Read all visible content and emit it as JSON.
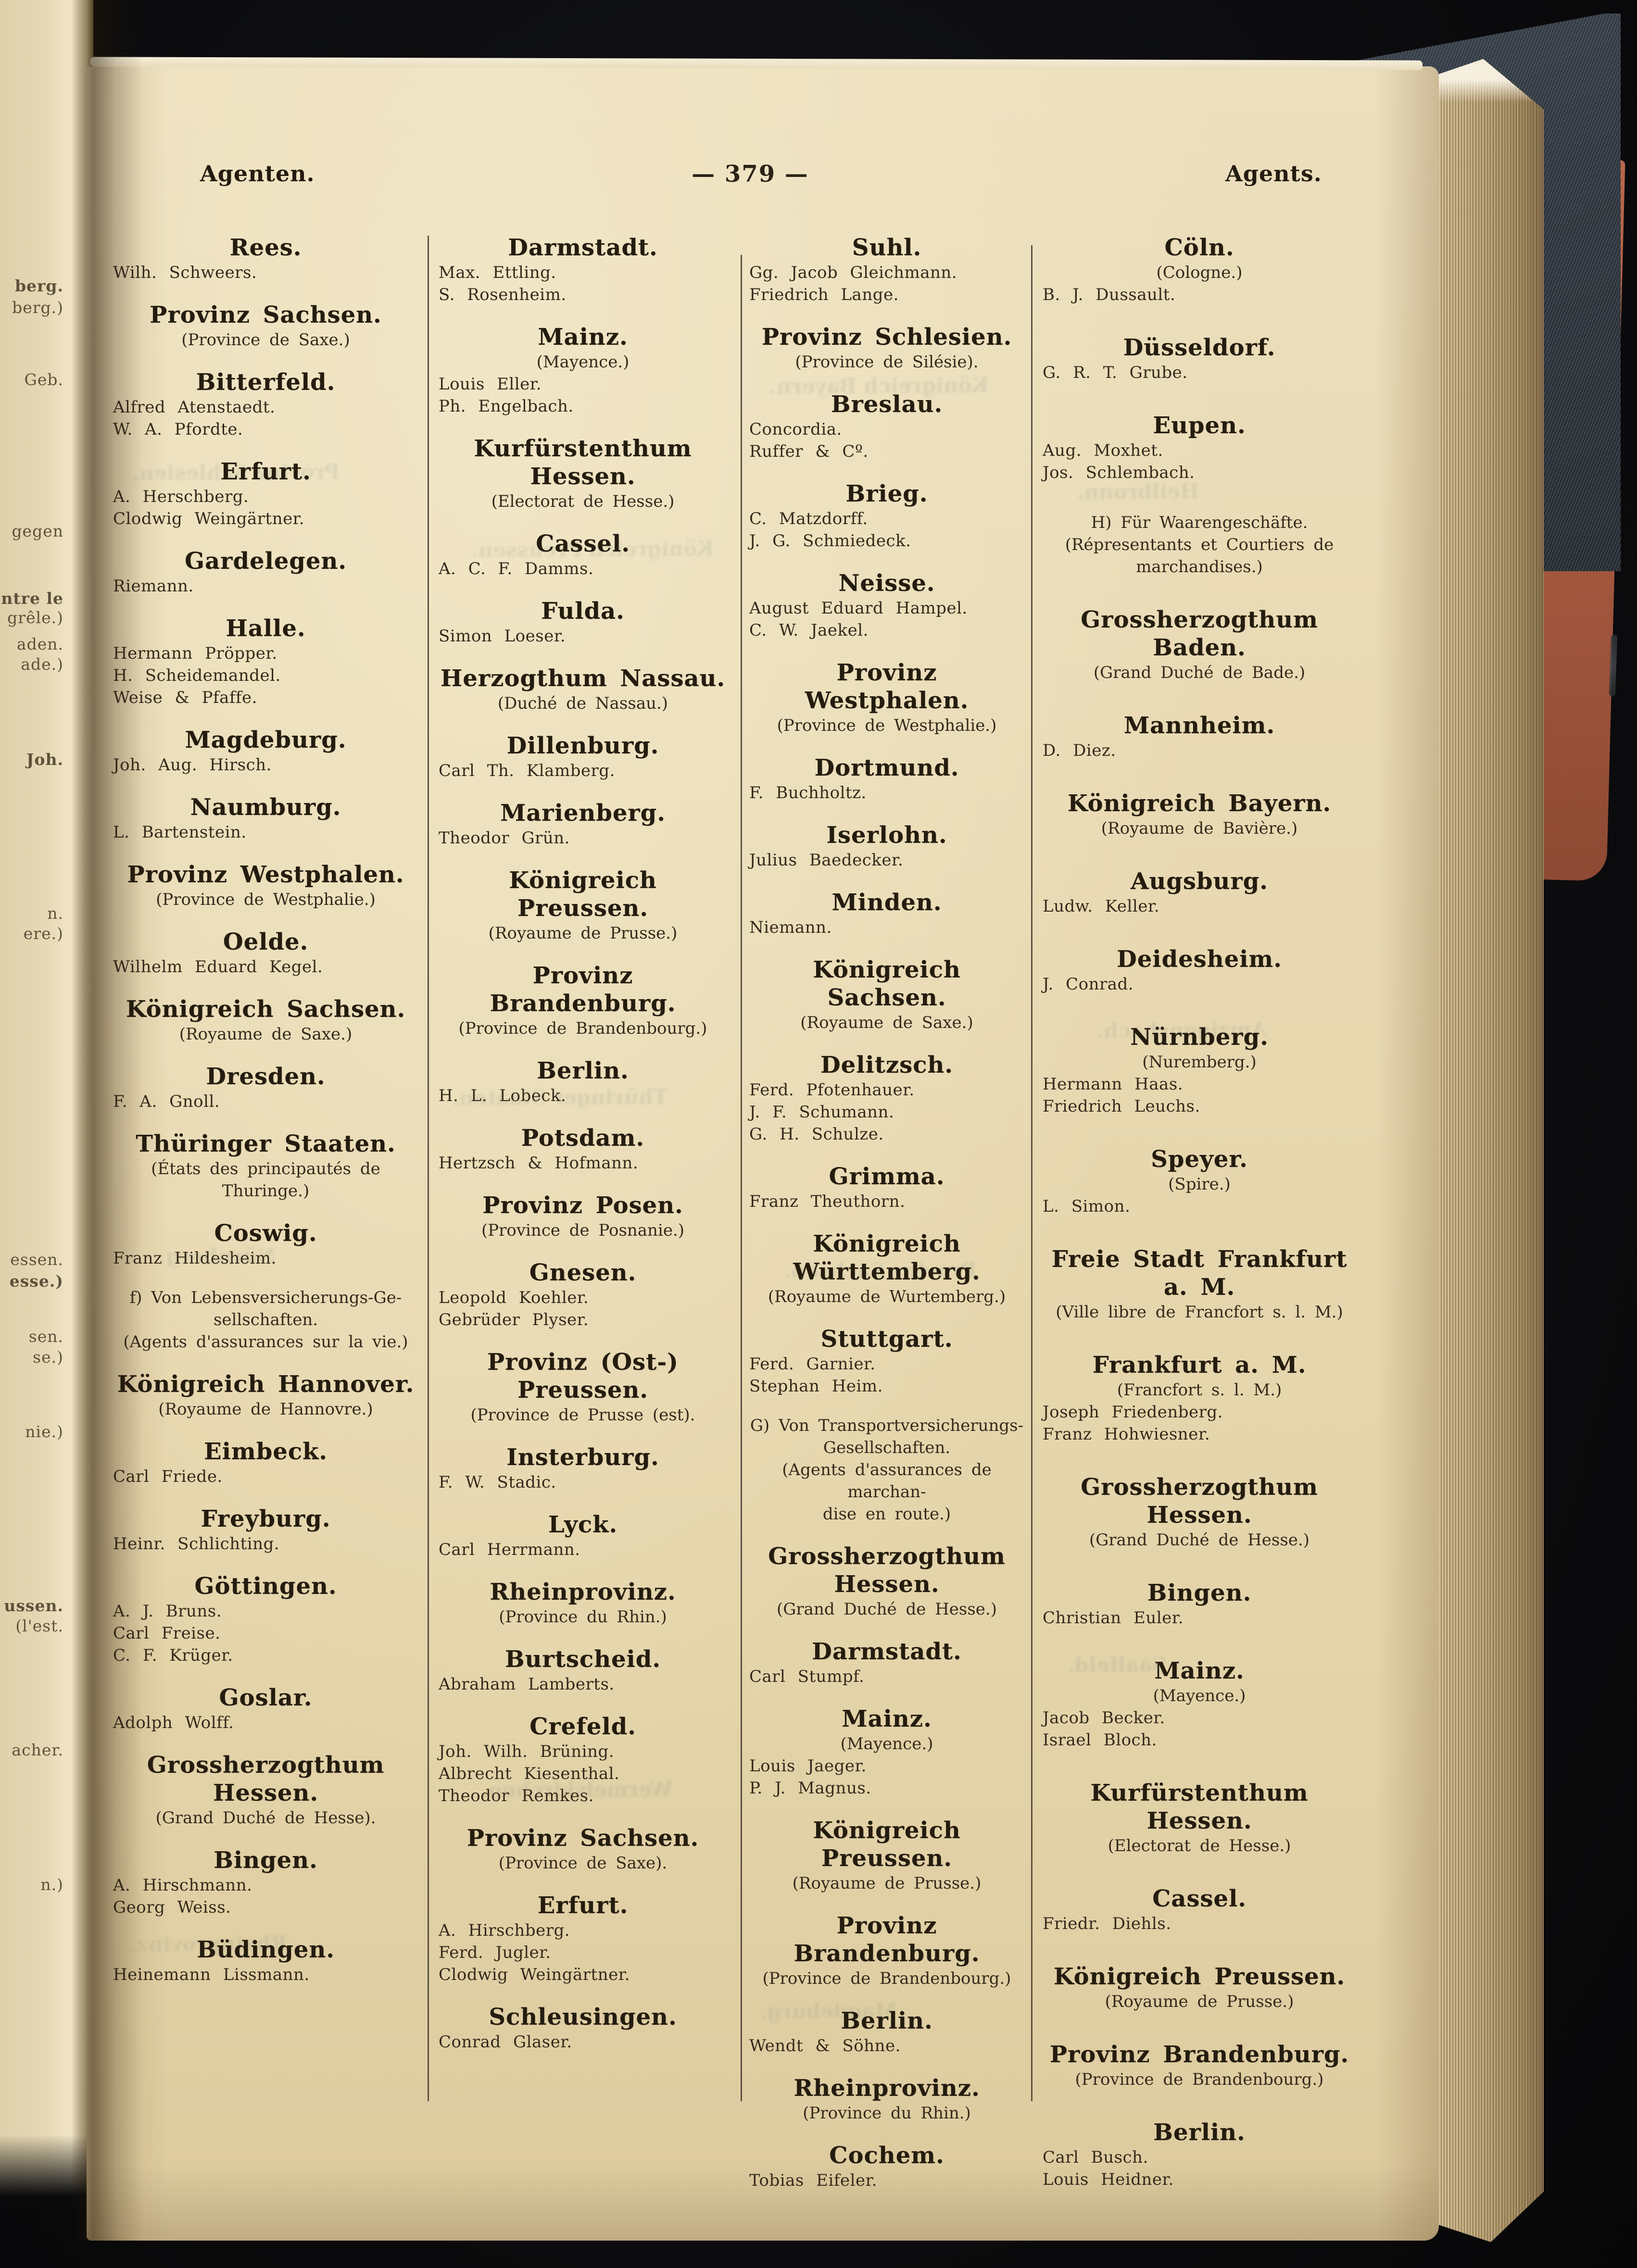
{
  "header": {
    "left": "Agenten.",
    "center": "— 379 —",
    "right": "Agents."
  },
  "columns": [
    {
      "entries": [
        {
          "title": "Rees.",
          "names": [
            "Wilh. Schweers."
          ]
        },
        {
          "title": "Provinz Sachsen.",
          "subtitle": [
            "(Province de Saxe.)"
          ]
        },
        {
          "title": "Bitterfeld.",
          "names": [
            "Alfred Atenstaedt.",
            "W. A. Pfordte."
          ]
        },
        {
          "title": "Erfurt.",
          "names": [
            "A. Herschberg.",
            "Clodwig Weingärtner."
          ]
        },
        {
          "title": "Gardelegen.",
          "names": [
            "Riemann."
          ]
        },
        {
          "title": "Halle.",
          "names": [
            "Hermann Pröpper.",
            "H. Scheidemandel.",
            "Weise & Pfaffe."
          ]
        },
        {
          "title": "Magdeburg.",
          "names": [
            "Joh. Aug. Hirsch."
          ]
        },
        {
          "title": "Naumburg.",
          "names": [
            "L. Bartenstein."
          ]
        },
        {
          "title": "Provinz Westphalen.",
          "subtitle": [
            "(Province de Westphalie.)"
          ]
        },
        {
          "title": "Oelde.",
          "names": [
            "Wilhelm Eduard Kegel."
          ]
        },
        {
          "title": "Königreich Sachsen.",
          "subtitle": [
            "(Royaume de Saxe.)"
          ]
        },
        {
          "title": "Dresden.",
          "names": [
            "F. A. Gnoll."
          ]
        },
        {
          "title": "Thüringer Staaten.",
          "subtitle": [
            "(États des principautés de Thuringe.)"
          ]
        },
        {
          "title": "Coswig.",
          "names": [
            "Franz Hildesheim."
          ]
        },
        {
          "note": [
            "f) Von Lebensversicherungs-Ge-",
            "sellschaften."
          ],
          "subtitle": [
            "(Agents d'assurances sur la vie.)"
          ]
        },
        {
          "title": "Königreich Hannover.",
          "subtitle": [
            "(Royaume de Hannovre.)"
          ]
        },
        {
          "title": "Eimbeck.",
          "names": [
            "Carl Friede."
          ]
        },
        {
          "title": "Freyburg.",
          "names": [
            "Heinr. Schlichting."
          ]
        },
        {
          "title": "Göttingen.",
          "names": [
            "A. J. Bruns.",
            "Carl Freise.",
            "C. F. Krüger."
          ]
        },
        {
          "title": "Goslar.",
          "names": [
            "Adolph Wolff."
          ]
        },
        {
          "title": "Grossherzogthum Hessen.",
          "subtitle": [
            "(Grand Duché de Hesse)."
          ]
        },
        {
          "title": "Bingen.",
          "names": [
            "A. Hirschmann.",
            "Georg Weiss."
          ]
        },
        {
          "title": "Büdingen.",
          "names": [
            "Heinemann Lissmann."
          ]
        }
      ]
    },
    {
      "entries": [
        {
          "title": "Darmstadt.",
          "names": [
            "Max. Ettling.",
            "S. Rosenheim."
          ]
        },
        {
          "title": "Mainz.",
          "subtitle": [
            "(Mayence.)"
          ],
          "names": [
            "Louis Eller.",
            "Ph. Engelbach."
          ]
        },
        {
          "title": "Kurfürstenthum Hessen.",
          "subtitle": [
            "(Electorat de Hesse.)"
          ]
        },
        {
          "title": "Cassel.",
          "names": [
            "A. C. F. Damms."
          ]
        },
        {
          "title": "Fulda.",
          "names": [
            "Simon Loeser."
          ]
        },
        {
          "title": "Herzogthum Nassau.",
          "subtitle": [
            "(Duché de Nassau.)"
          ]
        },
        {
          "title": "Dillenburg.",
          "names": [
            "Carl Th. Klamberg."
          ]
        },
        {
          "title": "Marienberg.",
          "names": [
            "Theodor Grün."
          ]
        },
        {
          "title": "Königreich Preussen.",
          "subtitle": [
            "(Royaume de Prusse.)"
          ]
        },
        {
          "title": "Provinz Brandenburg.",
          "subtitle": [
            "(Province de Brandenbourg.)"
          ]
        },
        {
          "title": "Berlin.",
          "names": [
            "H. L. Lobeck."
          ]
        },
        {
          "title": "Potsdam.",
          "names": [
            "Hertzsch & Hofmann."
          ]
        },
        {
          "title": "Provinz Posen.",
          "subtitle": [
            "(Province de Posnanie.)"
          ]
        },
        {
          "title": "Gnesen.",
          "names": [
            "Leopold Koehler.",
            "Gebrüder Plyser."
          ]
        },
        {
          "title": "Provinz (Ost-) Preussen.",
          "subtitle": [
            "(Province de Prusse (est)."
          ]
        },
        {
          "title": "Insterburg.",
          "names": [
            "F. W. Stadic."
          ]
        },
        {
          "title": "Lyck.",
          "names": [
            "Carl Herrmann."
          ]
        },
        {
          "title": "Rheinprovinz.",
          "subtitle": [
            "(Province du Rhin.)"
          ]
        },
        {
          "title": "Burtscheid.",
          "names": [
            "Abraham Lamberts."
          ]
        },
        {
          "title": "Crefeld.",
          "names": [
            "Joh. Wilh. Brüning.",
            "Albrecht Kiesenthal.",
            "Theodor Remkes."
          ]
        },
        {
          "title": "Provinz Sachsen.",
          "subtitle": [
            "(Province de Saxe)."
          ]
        },
        {
          "title": "Erfurt.",
          "names": [
            "A. Hirschberg.",
            "Ferd. Jugler.",
            "Clodwig Weingärtner."
          ]
        },
        {
          "title": "Schleusingen.",
          "names": [
            "Conrad Glaser."
          ]
        }
      ]
    },
    {
      "entries": [
        {
          "title": "Suhl.",
          "names": [
            "Gg. Jacob Gleichmann.",
            "Friedrich Lange."
          ]
        },
        {
          "title": "Provinz Schlesien.",
          "subtitle": [
            "(Province de Silésie)."
          ]
        },
        {
          "title": "Breslau.",
          "names": [
            "Concordia.",
            "Ruffer & Cº."
          ]
        },
        {
          "title": "Brieg.",
          "names": [
            "C. Matzdorff.",
            "J. G. Schmiedeck."
          ]
        },
        {
          "title": "Neisse.",
          "names": [
            "August Eduard Hampel.",
            "C. W. Jaekel."
          ]
        },
        {
          "title": "Provinz Westphalen.",
          "subtitle": [
            "(Province de Westphalie.)"
          ]
        },
        {
          "title": "Dortmund.",
          "names": [
            "F. Buchholtz."
          ]
        },
        {
          "title": "Iserlohn.",
          "names": [
            "Julius Baedecker."
          ]
        },
        {
          "title": "Minden.",
          "names": [
            "Niemann."
          ]
        },
        {
          "title": "Königreich Sachsen.",
          "subtitle": [
            "(Royaume de Saxe.)"
          ]
        },
        {
          "title": "Delitzsch.",
          "names": [
            "Ferd. Pfotenhauer.",
            "J. F. Schumann.",
            "G. H. Schulze."
          ]
        },
        {
          "title": "Grimma.",
          "names": [
            "Franz Theuthorn."
          ]
        },
        {
          "title": "Königreich Württemberg.",
          "subtitle": [
            "(Royaume de Wurtemberg.)"
          ]
        },
        {
          "title": "Stuttgart.",
          "names": [
            "Ferd. Garnier.",
            "Stephan Heim."
          ]
        },
        {
          "note": [
            "G) Von Transportversicherungs-",
            "Gesellschaften."
          ],
          "subtitle": [
            "(Agents d'assurances de marchan-",
            "dise en route.)"
          ]
        },
        {
          "title": "Grossherzogthum Hessen.",
          "subtitle": [
            "(Grand Duché de Hesse.)"
          ]
        },
        {
          "title": "Darmstadt.",
          "names": [
            "Carl Stumpf."
          ]
        },
        {
          "title": "Mainz.",
          "subtitle": [
            "(Mayence.)"
          ],
          "names": [
            "Louis Jaeger.",
            "P. J. Magnus."
          ]
        },
        {
          "title": "Königreich Preussen.",
          "subtitle": [
            "(Royaume de Prusse.)"
          ]
        },
        {
          "title": "Provinz Brandenburg.",
          "subtitle": [
            "(Province de Brandenbourg.)"
          ]
        },
        {
          "title": "Berlin.",
          "names": [
            "Wendt & Söhne."
          ]
        },
        {
          "title": "Rheinprovinz.",
          "subtitle": [
            "(Province du Rhin.)"
          ]
        },
        {
          "title": "Cochem.",
          "names": [
            "Tobias Eifeler."
          ]
        }
      ]
    },
    {
      "entries": [
        {
          "title": "Cöln.",
          "subtitle": [
            "(Cologne.)"
          ],
          "names": [
            "B. J. Dussault."
          ]
        },
        {
          "title": "Düsseldorf.",
          "names": [
            "G. R. T. Grube."
          ]
        },
        {
          "title": "Eupen.",
          "names": [
            "Aug. Moxhet.",
            "Jos. Schlembach."
          ]
        },
        {
          "note": [
            "H) Für Waarengeschäfte."
          ],
          "subtitle": [
            "(Répresentants et Courtiers de",
            "marchandises.)"
          ]
        },
        {
          "title": "Grossherzogthum Baden.",
          "subtitle": [
            "(Grand Duché de Bade.)"
          ]
        },
        {
          "title": "Mannheim.",
          "names": [
            "D. Diez."
          ]
        },
        {
          "title": "Königreich Bayern.",
          "subtitle": [
            "(Royaume de Bavière.)"
          ]
        },
        {
          "title": "Augsburg.",
          "names": [
            "Ludw. Keller."
          ]
        },
        {
          "title": "Deidesheim.",
          "names": [
            "J. Conrad."
          ]
        },
        {
          "title": "Nürnberg.",
          "subtitle": [
            "(Nuremberg.)"
          ],
          "names": [
            "Hermann Haas.",
            "Friedrich Leuchs."
          ]
        },
        {
          "title": "Speyer.",
          "subtitle": [
            "(Spire.)"
          ],
          "names": [
            "L. Simon."
          ]
        },
        {
          "title": "Freie Stadt Frankfurt a. M.",
          "subtitle": [
            "(Ville libre de Francfort s. l. M.)"
          ]
        },
        {
          "title": "Frankfurt a. M.",
          "subtitle": [
            "(Francfort s. l. M.)"
          ],
          "names": [
            "Joseph Friedenberg.",
            "Franz Hohwiesner."
          ]
        },
        {
          "title": "Grossherzogthum Hessen.",
          "subtitle": [
            "(Grand Duché de Hesse.)"
          ]
        },
        {
          "title": "Bingen.",
          "names": [
            "Christian Euler."
          ]
        },
        {
          "title": "Mainz.",
          "subtitle": [
            "(Mayence.)"
          ],
          "names": [
            "Jacob Becker.",
            "Israel Bloch."
          ]
        },
        {
          "title": "Kurfürstenthum Hessen.",
          "subtitle": [
            "(Electorat de Hesse.)"
          ]
        },
        {
          "title": "Cassel.",
          "names": [
            "Friedr. Diehls."
          ]
        },
        {
          "title": "Königreich Preussen.",
          "subtitle": [
            "(Royaume de Prusse.)"
          ]
        },
        {
          "title": "Provinz Brandenburg.",
          "subtitle": [
            "(Province de Brandenbourg.)"
          ]
        },
        {
          "title": "Berlin.",
          "names": [
            "Carl Busch.",
            "Louis Heidner."
          ]
        }
      ]
    }
  ],
  "left_page_fragments": [
    "berg.",
    "berg.)",
    "Geb.",
    "gegen",
    "ontre le",
    "grêle.)",
    "aden.",
    "ade.)",
    "Joh.",
    "n.",
    "ere.)",
    "essen.",
    "esse.)",
    "sen.",
    "se.)",
    "nie.)",
    "ussen.",
    "(l'est.",
    "acher.",
    "n.)"
  ],
  "ghost_fragments": [
    "Provinz Schlesien.",
    "Nürnberg.",
    "Rheinprovinz.",
    "Königreich Preussen.",
    "Thüringer Staaten.",
    "Wermelskirchen.",
    "Königreich Bayern.",
    "Provinz Sachsen.",
    "Magdeburg.",
    "Heilbronn.",
    "Amzigensbach.",
    "Saalfeld."
  ],
  "colors": {
    "paper": "#e8d9b2",
    "ink": "#2c2315",
    "cover_cloth": "#2a3138",
    "red_board": "#a85a41",
    "backdrop": "#0b0b0d"
  }
}
